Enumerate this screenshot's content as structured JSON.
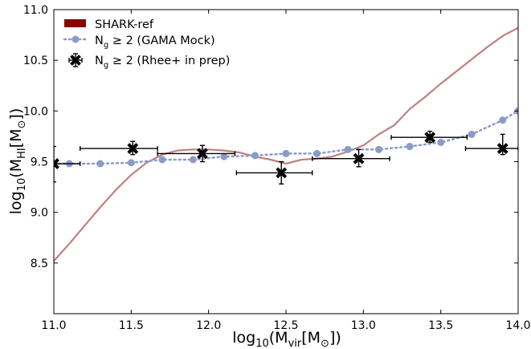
{
  "chart_data": {
    "type": "line",
    "xlabel": {
      "base": "log",
      "sub": "10",
      "open": "(M",
      "var_sub": "vir",
      "bracket": "[M",
      "sun": "⊙",
      "close": "])"
    },
    "ylabel": {
      "base": "log",
      "sub": "10",
      "open": "(M",
      "var_sub": "HI",
      "bracket": "[M",
      "sun": "⊙",
      "close": "])"
    },
    "xlim": [
      11.0,
      14.0
    ],
    "ylim": [
      8.0,
      11.0
    ],
    "xticks": [
      11.0,
      11.5,
      12.0,
      12.5,
      13.0,
      13.5,
      14.0
    ],
    "yticks": [
      8.5,
      9.0,
      9.5,
      10.0,
      10.5,
      11.0
    ],
    "xtick_labels": [
      "11.0",
      "11.5",
      "12.0",
      "12.5",
      "13.0",
      "13.5",
      "14.0"
    ],
    "ytick_labels": [
      "8.5",
      "9.0",
      "9.5",
      "10.0",
      "10.5",
      "11.0"
    ],
    "grid": false,
    "legend_placement": "top-left",
    "legend": [
      {
        "label": "SHARK-ref",
        "sub": "",
        "rest": ""
      },
      {
        "label": "N",
        "sub": "g",
        "rest": " ≥ 2 (GAMA Mock)"
      },
      {
        "label": "N",
        "sub": "g",
        "rest": " ≥ 2 (Rhee+ in prep)"
      }
    ],
    "series": [
      {
        "kind": "line",
        "color": "#c0807e",
        "legend_color": "#8b0000",
        "x": [
          11.0,
          11.1,
          11.2,
          11.3,
          11.4,
          11.5,
          11.6,
          11.7,
          11.8,
          11.9,
          12.0,
          12.1,
          12.2,
          12.3,
          12.4,
          12.5,
          12.6,
          12.7,
          12.8,
          12.9,
          13.0,
          13.1,
          13.2,
          13.3,
          13.4,
          13.5,
          13.6,
          13.7,
          13.8,
          13.9,
          14.0
        ],
        "y": [
          8.52,
          8.69,
          8.87,
          9.05,
          9.22,
          9.37,
          9.49,
          9.57,
          9.61,
          9.62,
          9.62,
          9.61,
          9.59,
          9.55,
          9.52,
          9.48,
          9.52,
          9.53,
          9.55,
          9.6,
          9.66,
          9.77,
          9.86,
          10.02,
          10.14,
          10.27,
          10.39,
          10.51,
          10.63,
          10.74,
          10.82
        ]
      },
      {
        "kind": "dotted-markers",
        "color": "#8b9bc8",
        "x": [
          11.0,
          11.1,
          11.3,
          11.5,
          11.7,
          11.9,
          12.1,
          12.3,
          12.5,
          12.7,
          12.9,
          13.1,
          13.3,
          13.5,
          13.7,
          13.9,
          14.0
        ],
        "y": [
          9.48,
          9.48,
          9.48,
          9.49,
          9.52,
          9.52,
          9.55,
          9.56,
          9.58,
          9.58,
          9.62,
          9.62,
          9.65,
          9.69,
          9.77,
          9.91,
          10.0
        ]
      },
      {
        "kind": "errorbar",
        "color": "#000000",
        "x": [
          11.0,
          11.51,
          11.96,
          12.47,
          12.97,
          13.43,
          13.9
        ],
        "y": [
          9.48,
          9.63,
          9.58,
          9.39,
          9.53,
          9.74,
          9.63
        ],
        "xerr_low": [
          11.0,
          11.17,
          11.67,
          12.18,
          12.67,
          13.18,
          13.66
        ],
        "xerr_high": [
          11.17,
          11.67,
          12.17,
          12.67,
          13.17,
          13.67,
          14.0
        ],
        "yerr_low": [
          9.3,
          9.57,
          9.5,
          9.28,
          9.45,
          9.69,
          9.57
        ],
        "yerr_high": [
          9.65,
          9.7,
          9.66,
          9.5,
          9.62,
          9.8,
          9.77
        ]
      }
    ]
  }
}
